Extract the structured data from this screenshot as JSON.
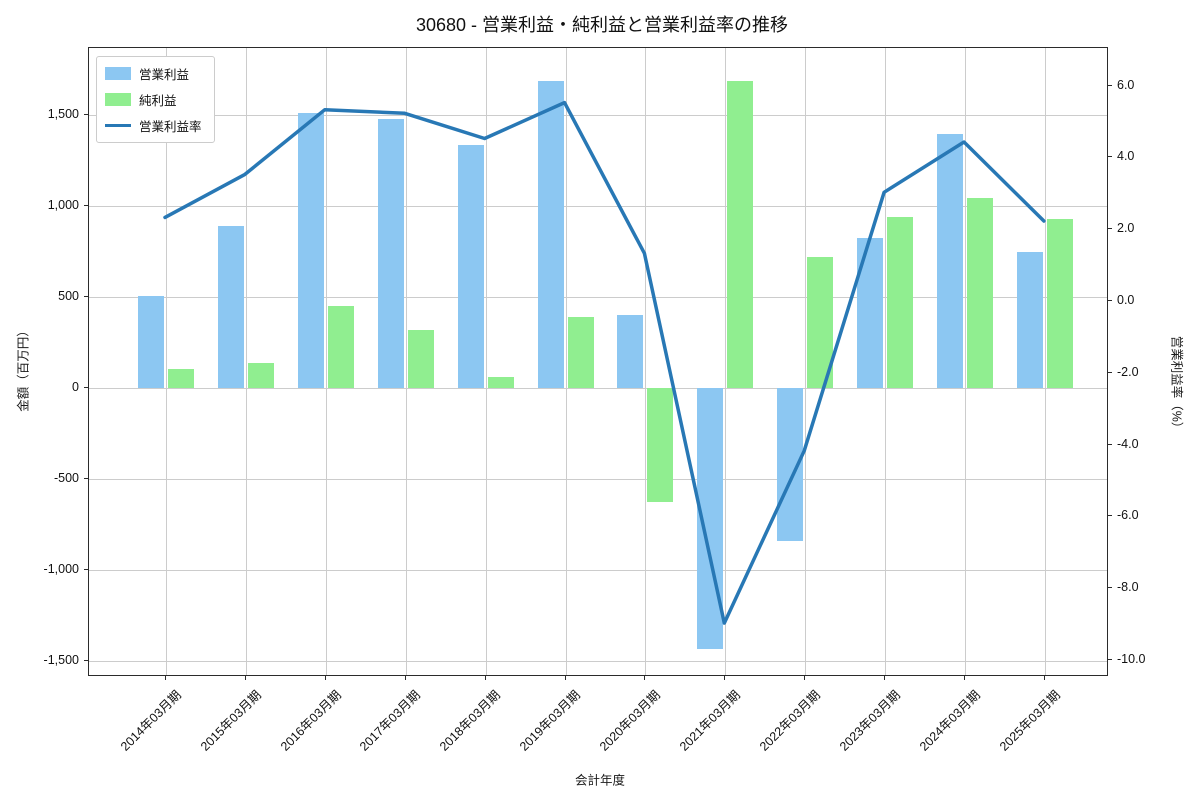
{
  "chart_data": {
    "type": "bar+line",
    "title": "30680 - 営業利益・純利益と営業利益率の推移",
    "xlabel": "会計年度",
    "ylabel_left": "金額（百万円）",
    "ylabel_right": "営業利益率（%）",
    "categories": [
      "2014年03月期",
      "2015年03月期",
      "2016年03月期",
      "2017年03月期",
      "2018年03月期",
      "2019年03月期",
      "2020年03月期",
      "2021年03月期",
      "2022年03月期",
      "2023年03月期",
      "2024年03月期",
      "2025年03月期"
    ],
    "series": [
      {
        "name": "営業利益",
        "type": "bar",
        "axis": "left",
        "color": "#8cc7f2",
        "values": [
          510,
          890,
          1515,
          1480,
          1335,
          1690,
          405,
          -1430,
          -840,
          825,
          1400,
          750
        ]
      },
      {
        "name": "純利益",
        "type": "bar",
        "axis": "left",
        "color": "#90ee90",
        "values": [
          105,
          140,
          455,
          320,
          65,
          390,
          -625,
          1690,
          720,
          940,
          1045,
          930
        ]
      },
      {
        "name": "営業利益率",
        "type": "line",
        "axis": "right",
        "color": "#2878b5",
        "values": [
          2.3,
          3.5,
          5.3,
          5.2,
          4.5,
          5.5,
          1.3,
          -9.0,
          -4.2,
          3.0,
          4.4,
          2.2
        ]
      }
    ],
    "left_axis": {
      "ticks": [
        1500,
        1000,
        500,
        0,
        -500,
        -1000,
        -1500
      ],
      "tick_labels": [
        "1,500",
        "1,000",
        "500",
        "0",
        "-500",
        "-1,000",
        "-1,500"
      ],
      "range": [
        -1590,
        1870
      ]
    },
    "right_axis": {
      "ticks": [
        6,
        4,
        2,
        0,
        -2,
        -4,
        -6,
        -8,
        -10
      ],
      "tick_labels": [
        "6.0",
        "4.0",
        "2.0",
        "0.0",
        "-2.0",
        "-4.0",
        "-6.0",
        "-8.0",
        "-10.0"
      ],
      "range": [
        -10.5,
        7.05
      ]
    },
    "grid": true,
    "legend": {
      "position": "upper left"
    },
    "colors": {
      "bar_operating": "#8cc7f2",
      "bar_net": "#90ee90",
      "line_margin": "#2878b5",
      "grid": "#cccccc",
      "spine": "#2b2b2b"
    }
  }
}
